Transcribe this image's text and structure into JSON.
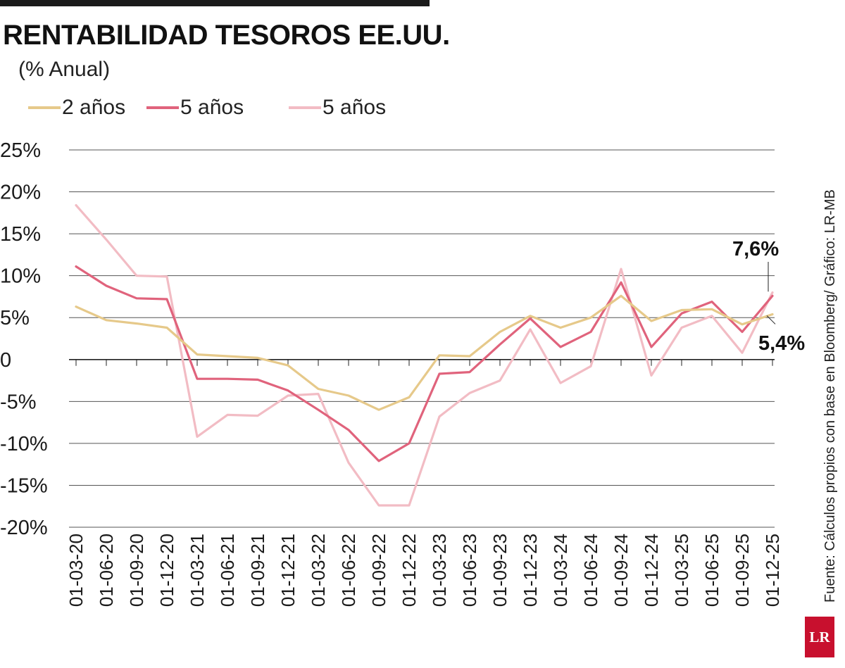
{
  "header": {
    "title": "RENTABILIDAD TESOROS EE.UU.",
    "subtitle": "(% Anual)"
  },
  "footer": {
    "source": "Fuente: Cálculos propios con base en Bloomberg/ Gráfico: LR-MB",
    "logo": "LR"
  },
  "chart_data": {
    "type": "line",
    "title": "RENTABILIDAD TESOROS EE.UU.",
    "ylabel": "(% Anual)",
    "xlabel": "",
    "ylim": [
      -20,
      25
    ],
    "y_ticks": [
      {
        "value": 25,
        "label": "25%"
      },
      {
        "value": 20,
        "label": "20%"
      },
      {
        "value": 15,
        "label": "15%"
      },
      {
        "value": 10,
        "label": "10%"
      },
      {
        "value": 5,
        "label": "5%"
      },
      {
        "value": 0,
        "label": "0"
      },
      {
        "value": -5,
        "label": "-5%"
      },
      {
        "value": -10,
        "label": "-10%"
      },
      {
        "value": -15,
        "label": "-15%"
      },
      {
        "value": -20,
        "label": "-20%"
      }
    ],
    "categories": [
      "01-03-20",
      "01-06-20",
      "01-09-20",
      "01-12-20",
      "01-03-21",
      "01-06-21",
      "01-09-21",
      "01-12-21",
      "01-03-22",
      "01-06-22",
      "01-09-22",
      "01-12-22",
      "01-03-23",
      "01-06-23",
      "01-09-23",
      "01-12-23",
      "01-03-24",
      "01-06-24",
      "01-09-24",
      "01-12-24",
      "01-03-25",
      "01-06-25",
      "01-09-25",
      "01-12-25"
    ],
    "series": [
      {
        "name": "2 años",
        "color": "#e6c98a",
        "values": [
          6.3,
          4.7,
          4.3,
          3.8,
          0.6,
          0.4,
          0.2,
          -0.7,
          -3.5,
          -4.3,
          -6.0,
          -4.5,
          0.5,
          0.4,
          3.3,
          5.2,
          3.8,
          5.0,
          7.6,
          4.6,
          5.9,
          6.0,
          4.2,
          5.4
        ]
      },
      {
        "name": "5 años",
        "color": "#e0637c",
        "values": [
          11.1,
          8.8,
          7.3,
          7.2,
          -2.3,
          -2.3,
          -2.4,
          -3.7,
          -6.0,
          -8.4,
          -12.1,
          -10.0,
          -1.7,
          -1.5,
          1.8,
          4.9,
          1.5,
          3.3,
          9.2,
          1.5,
          5.5,
          6.9,
          3.3,
          7.6
        ]
      },
      {
        "name": "5 años",
        "color": "#f2bcc4",
        "values": [
          18.4,
          14.3,
          10.0,
          9.9,
          -9.2,
          -6.6,
          -6.7,
          -4.3,
          -4.1,
          -12.3,
          -17.4,
          -17.4,
          -6.8,
          -4.0,
          -2.5,
          3.6,
          -2.8,
          -0.8,
          10.8,
          -1.9,
          3.8,
          5.2,
          0.8,
          8.0
        ]
      }
    ],
    "annotations": [
      {
        "text": "7,6%",
        "series": 1,
        "point": 23
      },
      {
        "text": "5,4%",
        "series": 0,
        "point": 23
      }
    ],
    "grid": true,
    "legend": "top-left"
  }
}
